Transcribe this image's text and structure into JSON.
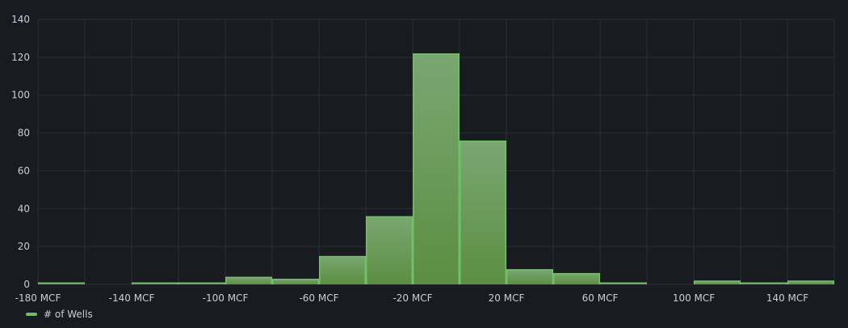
{
  "chart_data": {
    "type": "bar",
    "subtype": "histogram",
    "bin_width": 20,
    "x_unit": "MCF",
    "xlim": [
      -180,
      160
    ],
    "ylim": [
      0,
      140
    ],
    "x_ticks": [
      -180,
      -140,
      -100,
      -60,
      -20,
      20,
      60,
      100,
      140
    ],
    "x_tick_labels": [
      "-180 MCF",
      "-140 MCF",
      "-100 MCF",
      "-60 MCF",
      "-20 MCF",
      "20 MCF",
      "60 MCF",
      "100 MCF",
      "140 MCF"
    ],
    "y_ticks": [
      0,
      20,
      40,
      60,
      80,
      100,
      120,
      140
    ],
    "grid": true,
    "legend_position": "bottom-left",
    "series": [
      {
        "name": "# of Wells",
        "color": "#73bf69",
        "bins": [
          {
            "start": -180,
            "end": -160,
            "count": 1
          },
          {
            "start": -160,
            "end": -140,
            "count": 0
          },
          {
            "start": -140,
            "end": -120,
            "count": 1
          },
          {
            "start": -120,
            "end": -100,
            "count": 1
          },
          {
            "start": -100,
            "end": -80,
            "count": 4
          },
          {
            "start": -80,
            "end": -60,
            "count": 3
          },
          {
            "start": -60,
            "end": -40,
            "count": 15
          },
          {
            "start": -40,
            "end": -20,
            "count": 36
          },
          {
            "start": -20,
            "end": 0,
            "count": 122
          },
          {
            "start": 0,
            "end": 20,
            "count": 76
          },
          {
            "start": 20,
            "end": 40,
            "count": 8
          },
          {
            "start": 40,
            "end": 60,
            "count": 6
          },
          {
            "start": 60,
            "end": 80,
            "count": 1
          },
          {
            "start": 80,
            "end": 100,
            "count": 0
          },
          {
            "start": 100,
            "end": 120,
            "count": 2
          },
          {
            "start": 120,
            "end": 140,
            "count": 1
          },
          {
            "start": 140,
            "end": 160,
            "count": 2
          }
        ]
      }
    ]
  },
  "legend": {
    "label": "# of Wells",
    "color": "#73bf69"
  }
}
